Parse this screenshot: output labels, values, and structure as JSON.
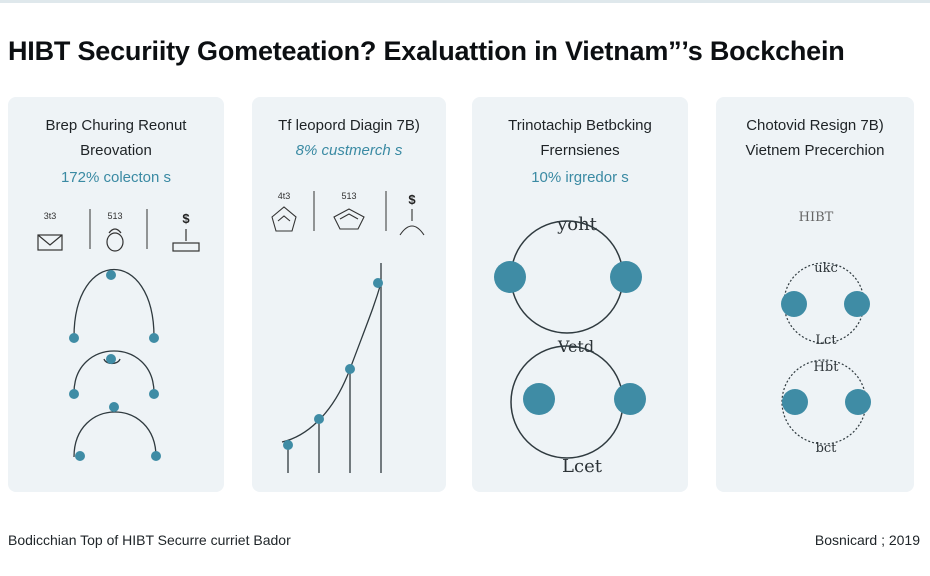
{
  "title": "HIBT Securiity Gometeation? Exaluattion in Vietnam”’s Bockchein",
  "panels": [
    {
      "line1": "Brep Churing Reonut",
      "line2": "Breovation",
      "line3": "172% colecton s",
      "icons": [
        {
          "label": "3t3",
          "icon": "envelope-icon"
        },
        {
          "label": "513",
          "icon": "lock-icon"
        },
        {
          "label": "$",
          "icon": "dollar-user-icon"
        }
      ]
    },
    {
      "line1": "Tf leopord Diagin 7B)",
      "line2": "8% custmerch s",
      "icons": [
        {
          "label": "4t3",
          "icon": "shield-icon"
        },
        {
          "label": "513",
          "icon": "shield-icon"
        },
        {
          "label": "$",
          "icon": "dollar-user-icon"
        }
      ]
    },
    {
      "line1": "Trinotachip Betbcking",
      "line2": "Frernsienes",
      "line3": "10% irgredor s",
      "circle_labels": [
        "yoht",
        "Vetd",
        "Lcet"
      ]
    },
    {
      "line1": "Chotovid Resign 7B)",
      "line2": "Vietnem Precerchion",
      "glyph_label": "HIBT",
      "circle_labels": [
        "ukc",
        "Lct",
        "Hbt",
        "bct"
      ]
    }
  ],
  "footer": {
    "left": "Bodicchian Top of HIBT Securre curriet Bador",
    "right": "Bosnicard ; 2019"
  },
  "colors": {
    "accent": "#3a8aa3",
    "node": "#3f8ca5",
    "panel": "#eef3f6"
  }
}
